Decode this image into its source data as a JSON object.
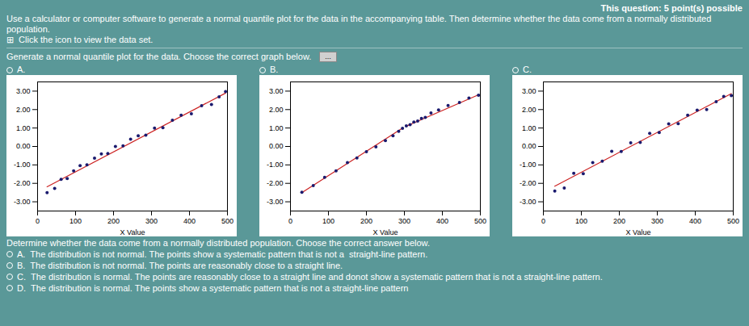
{
  "title": "This question: 5 point(s) possible",
  "annotations": [
    "Use a calculator or computer software to generate a normal quantile plot for the data in the accompanying table. Then determine whether the data come from a normally distributed population.",
    "⊞  Click the icon to view the data set.",
    "Generate a normal quantile plot for the data. Choose the correct graph below.",
    "...",
    "Determine whether the data come from a normally distributed population. Choose the correct answer below.",
    "A.  The distribution is not normal. The points show a systematic pattern that is not a  straight-line pattern.",
    "B.  The distribution is not normal. The points are reasonably close to a straight line.",
    "C.  The distribution is normal. The points are reasonably close to a straight line and donot show a systematic pattern that is not a straight-line pattern.",
    "D.  The distribution is normal. The points show a systematic pattern that is not a straight-line pattern"
  ],
  "chart_data": [
    {
      "type": "scatter",
      "title": "A.",
      "xlabel": "X Value",
      "grid": false,
      "xlim": [
        0,
        500
      ],
      "ylim": [
        -3.5,
        3.5
      ],
      "xticks": [
        0,
        100,
        200,
        300,
        400,
        500
      ],
      "yticks": [
        {
          "value": -3,
          "label": "-3.00"
        },
        {
          "value": -2,
          "label": "-2.00"
        },
        {
          "value": -1,
          "label": "-1.00"
        },
        {
          "value": 0,
          "label": "0.00"
        },
        {
          "value": 1,
          "label": "1.00"
        },
        {
          "value": 2,
          "label": "2.00"
        },
        {
          "value": 3,
          "label": "3.00"
        }
      ],
      "series": [
        {
          "type": "line",
          "color": "#cc2222",
          "x": [
            25,
            495
          ],
          "values": [
            -2.187,
            2.893
          ]
        },
        {
          "type": "scatter",
          "color": "#1a1a6e",
          "x": [
            25,
            45,
            62,
            78,
            95,
            112,
            130,
            150,
            168,
            185,
            205,
            225,
            245,
            265,
            285,
            308,
            330,
            355,
            378,
            405,
            432,
            458,
            478,
            495
          ],
          "values": [
            -2.5,
            -2.28,
            -1.78,
            -1.74,
            -1.32,
            -1.04,
            -1.0,
            -0.63,
            -0.41,
            -0.38,
            0.0,
            0.03,
            0.39,
            0.58,
            0.61,
            1.0,
            1.02,
            1.42,
            1.69,
            1.77,
            2.21,
            2.28,
            2.69,
            2.98
          ]
        }
      ]
    },
    {
      "type": "scatter",
      "title": "B.",
      "xlabel": "X Value",
      "grid": false,
      "xlim": [
        0,
        500
      ],
      "ylim": [
        -3.5,
        3.5
      ],
      "xticks": [
        0,
        100,
        200,
        300,
        400,
        500
      ],
      "yticks": [
        {
          "value": -3,
          "label": "-3.00"
        },
        {
          "value": -2,
          "label": "-2.00"
        },
        {
          "value": -1,
          "label": "-1.00"
        },
        {
          "value": 0,
          "label": "0.00"
        },
        {
          "value": 1,
          "label": "1.00"
        },
        {
          "value": 2,
          "label": "2.00"
        },
        {
          "value": 3,
          "label": "3.00"
        }
      ],
      "series": [
        {
          "type": "line",
          "color": "#cc2222",
          "x": [
            30,
            295
          ],
          "values": [
            -2.5,
            1.0
          ]
        },
        {
          "type": "line",
          "color": "#cc2222",
          "x": [
            305,
            495
          ],
          "values": [
            1.1,
            2.8
          ]
        },
        {
          "type": "scatter",
          "color": "#1a1a6e",
          "x": [
            30,
            60,
            90,
            120,
            150,
            175,
            200,
            225,
            250,
            270,
            285,
            295,
            305,
            315,
            325,
            335,
            345,
            355,
            370,
            390,
            415,
            445,
            470,
            495
          ],
          "values": [
            -2.48,
            -2.12,
            -1.67,
            -1.32,
            -0.88,
            -0.62,
            -0.28,
            -0.02,
            0.32,
            0.58,
            0.82,
            0.98,
            1.12,
            1.18,
            1.32,
            1.38,
            1.52,
            1.58,
            1.82,
            1.98,
            2.22,
            2.38,
            2.62,
            2.78
          ]
        }
      ]
    },
    {
      "type": "scatter",
      "title": "C.",
      "xlabel": "X Value",
      "grid": false,
      "xlim": [
        0,
        500
      ],
      "ylim": [
        -3.5,
        3.5
      ],
      "xticks": [
        0,
        100,
        200,
        300,
        400,
        500
      ],
      "yticks": [
        {
          "value": -3,
          "label": "-3.00"
        },
        {
          "value": -2,
          "label": "-2.00"
        },
        {
          "value": -1,
          "label": "-1.00"
        },
        {
          "value": 0,
          "label": "0.00"
        },
        {
          "value": 1,
          "label": "1.00"
        },
        {
          "value": 2,
          "label": "2.00"
        },
        {
          "value": 3,
          "label": "3.00"
        }
      ],
      "series": [
        {
          "type": "line",
          "color": "#cc2222",
          "x": [
            30,
            495
          ],
          "values": [
            -2.156,
            2.869
          ]
        },
        {
          "type": "scatter",
          "color": "#1a1a6e",
          "x": [
            30,
            55,
            80,
            105,
            130,
            155,
            180,
            205,
            230,
            255,
            280,
            305,
            330,
            355,
            380,
            405,
            430,
            455,
            475,
            495
          ],
          "values": [
            -2.42,
            -2.25,
            -1.45,
            -1.48,
            -0.88,
            -0.8,
            -0.26,
            -0.27,
            0.2,
            0.22,
            0.71,
            0.76,
            1.23,
            1.24,
            1.69,
            1.97,
            2.0,
            2.43,
            2.71,
            2.76
          ]
        }
      ]
    }
  ]
}
